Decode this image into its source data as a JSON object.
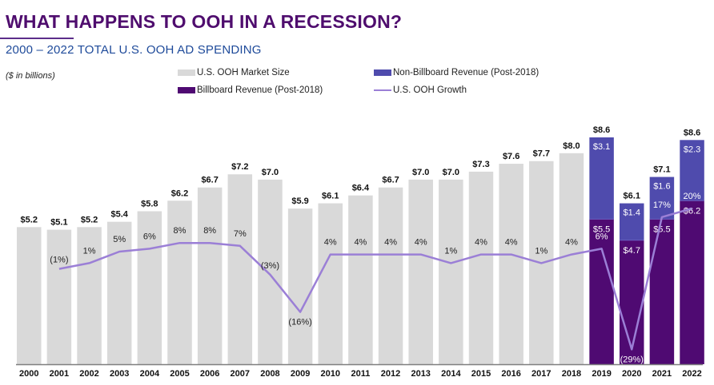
{
  "header": {
    "title": "WHAT HAPPENS TO OOH IN A RECESSION?",
    "subtitle": "2000 – 2022 TOTAL U.S. OOH AD SPENDING",
    "units_note": "($ in billions)"
  },
  "legend": [
    {
      "label": "U.S. OOH Market Size",
      "color": "#d9d9d9",
      "kind": "box"
    },
    {
      "label": "Non-Billboard Revenue (Post-2018)",
      "color": "#4f4bad",
      "kind": "box"
    },
    {
      "label": "Billboard Revenue (Post-2018)",
      "color": "#4f0a72",
      "kind": "box"
    },
    {
      "label": "U.S. OOH Growth",
      "color": "#9b7fd6",
      "kind": "line"
    }
  ],
  "colors": {
    "market_size": "#d9d9d9",
    "non_billboard": "#4f4bad",
    "billboard": "#4f0a72",
    "growth_line": "#9b7fd6",
    "title": "#4f0d6e",
    "subtitle": "#1e4a9a",
    "axis": "#7f7f7f"
  },
  "chart_data": {
    "type": "bar",
    "title": "2000 – 2022 TOTAL U.S. OOH AD SPENDING",
    "xlabel": "",
    "ylabel": "$ in billions",
    "ylim": [
      0,
      8.6
    ],
    "grid": false,
    "legend_position": "top",
    "categories": [
      "2000",
      "2001",
      "2002",
      "2003",
      "2004",
      "2005",
      "2006",
      "2007",
      "2008",
      "2009",
      "2010",
      "2011",
      "2012",
      "2013",
      "2014",
      "2015",
      "2016",
      "2017",
      "2018",
      "2019",
      "2020",
      "2021",
      "2022"
    ],
    "series": [
      {
        "name": "U.S. OOH Market Size",
        "type": "bar",
        "values": [
          5.2,
          5.1,
          5.2,
          5.4,
          5.8,
          6.2,
          6.7,
          7.2,
          7.0,
          5.9,
          6.1,
          6.4,
          6.7,
          7.0,
          7.0,
          7.3,
          7.6,
          7.7,
          8.0,
          null,
          null,
          null,
          null
        ]
      },
      {
        "name": "Billboard Revenue (Post-2018)",
        "type": "stacked-bar",
        "values": [
          null,
          null,
          null,
          null,
          null,
          null,
          null,
          null,
          null,
          null,
          null,
          null,
          null,
          null,
          null,
          null,
          null,
          null,
          null,
          5.5,
          4.7,
          5.5,
          6.2
        ]
      },
      {
        "name": "Non-Billboard Revenue (Post-2018)",
        "type": "stacked-bar",
        "values": [
          null,
          null,
          null,
          null,
          null,
          null,
          null,
          null,
          null,
          null,
          null,
          null,
          null,
          null,
          null,
          null,
          null,
          null,
          null,
          3.1,
          1.4,
          1.6,
          2.3
        ]
      },
      {
        "name": "U.S. OOH Growth",
        "type": "line",
        "unit": "%",
        "values": [
          null,
          -1,
          1,
          5,
          6,
          8,
          8,
          7,
          -3,
          -16,
          4,
          4,
          4,
          4,
          1,
          4,
          4,
          1,
          4,
          6,
          -29,
          17,
          20
        ]
      }
    ],
    "total_labels": [
      "$5.2",
      "$5.1",
      "$5.2",
      "$5.4",
      "$5.8",
      "$6.2",
      "$6.7",
      "$7.2",
      "$7.0",
      "$5.9",
      "$6.1",
      "$6.4",
      "$6.7",
      "$7.0",
      "$7.0",
      "$7.3",
      "$7.6",
      "$7.7",
      "$8.0",
      "$8.6",
      "$6.1",
      "$7.1",
      "$8.6"
    ],
    "billboard_labels": [
      "$5.5",
      "$4.7",
      "$5.5",
      "$6.2"
    ],
    "non_billboard_labels": [
      "$3.1",
      "$1.4",
      "$1.6",
      "$2.3"
    ],
    "growth_labels": [
      "",
      "(1%)",
      "1%",
      "5%",
      "6%",
      "8%",
      "8%",
      "7%",
      "(3%)",
      "(16%)",
      "4%",
      "4%",
      "4%",
      "4%",
      "1%",
      "4%",
      "4%",
      "1%",
      "4%",
      "6%",
      "(29%)",
      "17%",
      "20%"
    ]
  }
}
